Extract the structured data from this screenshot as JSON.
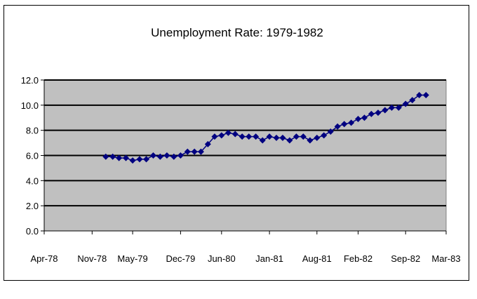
{
  "chart_data": {
    "type": "line",
    "title": "Unemployment Rate: 1979-1982",
    "xlabel": "",
    "ylabel": "",
    "xlim": [
      "1978-04-01",
      "1983-03-01"
    ],
    "ylim": [
      0,
      12
    ],
    "y_ticks": [
      "0.0",
      "2.0",
      "4.0",
      "6.0",
      "8.0",
      "10.0",
      "12.0"
    ],
    "x_ticks": [
      {
        "date": "1978-04-01",
        "label": "Apr-78"
      },
      {
        "date": "1978-11-01",
        "label": "Nov-78"
      },
      {
        "date": "1979-05-01",
        "label": "May-79"
      },
      {
        "date": "1979-12-01",
        "label": "Dec-79"
      },
      {
        "date": "1980-06-01",
        "label": "Jun-80"
      },
      {
        "date": "1981-01-01",
        "label": "Jan-81"
      },
      {
        "date": "1981-08-01",
        "label": "Aug-81"
      },
      {
        "date": "1982-02-01",
        "label": "Feb-82"
      },
      {
        "date": "1982-09-01",
        "label": "Sep-82"
      },
      {
        "date": "1983-03-01",
        "label": "Mar-83"
      }
    ],
    "grid": "horizontal",
    "plot_background": "#c0c0c0",
    "series": [
      {
        "color": "#000080",
        "points": [
          [
            "1979-01-01",
            5.9
          ],
          [
            "1979-02-01",
            5.9
          ],
          [
            "1979-03-01",
            5.8
          ],
          [
            "1979-04-01",
            5.8
          ],
          [
            "1979-05-01",
            5.6
          ],
          [
            "1979-06-01",
            5.7
          ],
          [
            "1979-07-01",
            5.7
          ],
          [
            "1979-08-01",
            6.0
          ],
          [
            "1979-09-01",
            5.9
          ],
          [
            "1979-10-01",
            6.0
          ],
          [
            "1979-11-01",
            5.9
          ],
          [
            "1979-12-01",
            6.0
          ],
          [
            "1980-01-01",
            6.3
          ],
          [
            "1980-02-01",
            6.3
          ],
          [
            "1980-03-01",
            6.3
          ],
          [
            "1980-04-01",
            6.9
          ],
          [
            "1980-05-01",
            7.5
          ],
          [
            "1980-06-01",
            7.6
          ],
          [
            "1980-07-01",
            7.8
          ],
          [
            "1980-08-01",
            7.7
          ],
          [
            "1980-09-01",
            7.5
          ],
          [
            "1980-10-01",
            7.5
          ],
          [
            "1980-11-01",
            7.5
          ],
          [
            "1980-12-01",
            7.2
          ],
          [
            "1981-01-01",
            7.5
          ],
          [
            "1981-02-01",
            7.4
          ],
          [
            "1981-03-01",
            7.4
          ],
          [
            "1981-04-01",
            7.2
          ],
          [
            "1981-05-01",
            7.5
          ],
          [
            "1981-06-01",
            7.5
          ],
          [
            "1981-07-01",
            7.2
          ],
          [
            "1981-08-01",
            7.4
          ],
          [
            "1981-09-01",
            7.6
          ],
          [
            "1981-10-01",
            7.9
          ],
          [
            "1981-11-01",
            8.3
          ],
          [
            "1981-12-01",
            8.5
          ],
          [
            "1982-01-01",
            8.6
          ],
          [
            "1982-02-01",
            8.9
          ],
          [
            "1982-03-01",
            9.0
          ],
          [
            "1982-04-01",
            9.3
          ],
          [
            "1982-05-01",
            9.4
          ],
          [
            "1982-06-01",
            9.6
          ],
          [
            "1982-07-01",
            9.8
          ],
          [
            "1982-08-01",
            9.8
          ],
          [
            "1982-09-01",
            10.1
          ],
          [
            "1982-10-01",
            10.4
          ],
          [
            "1982-11-01",
            10.8
          ],
          [
            "1982-12-01",
            10.8
          ]
        ]
      }
    ]
  }
}
